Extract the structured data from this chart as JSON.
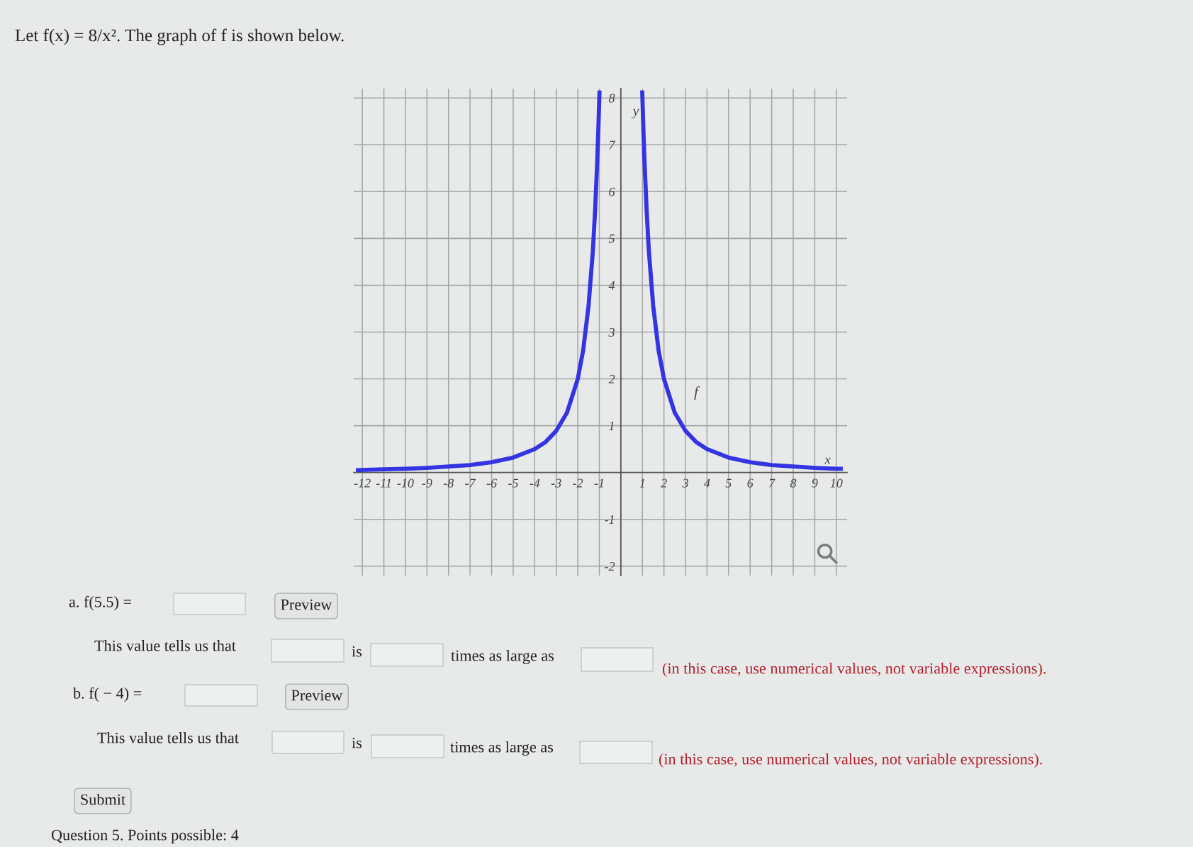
{
  "chart_data": {
    "type": "line",
    "title": "Let f(x) = 8/x². The graph of f is shown below.",
    "xlabel": "x",
    "ylabel": "y",
    "xlim": [
      -12.4,
      10.5
    ],
    "ylim": [
      -2.2,
      8.2
    ],
    "xticks": [
      {
        "value": -12,
        "label": "-12"
      },
      {
        "value": -11,
        "label": "-11"
      },
      {
        "value": -10,
        "label": "-10"
      },
      {
        "value": -9,
        "label": "-9"
      },
      {
        "value": -8,
        "label": "-8"
      },
      {
        "value": -7,
        "label": "-7"
      },
      {
        "value": -6,
        "label": "-6"
      },
      {
        "value": -5,
        "label": "-5"
      },
      {
        "value": -4,
        "label": "-4"
      },
      {
        "value": -3,
        "label": "-3"
      },
      {
        "value": -2,
        "label": "-2"
      },
      {
        "value": -1,
        "label": "-1"
      },
      1,
      2,
      3,
      4,
      5,
      6,
      7,
      8,
      9,
      10
    ],
    "yticks": [
      {
        "value": -2,
        "label": "-2"
      },
      {
        "value": -1,
        "label": "-1"
      },
      1,
      2,
      3,
      4,
      5,
      6,
      7,
      8
    ],
    "grid": true,
    "line_style": "solid",
    "marker": "none",
    "series": [
      {
        "color": "#3434e2",
        "x": [
          -12.3,
          -11,
          -10,
          -9,
          -8,
          -7,
          -6,
          -5,
          -4,
          -3.5,
          -3,
          -2.5,
          -2,
          -1.75,
          -1.5,
          -1.3,
          -1.2,
          -1.1,
          -1.05,
          -0.99,
          0,
          0.99,
          1.05,
          1.1,
          1.2,
          1.3,
          1.5,
          1.75,
          2,
          2.5,
          3,
          3.5,
          4,
          5,
          6,
          7,
          8,
          9,
          10,
          10.3
        ],
        "values": [
          0.05,
          0.07,
          0.08,
          0.1,
          0.13,
          0.16,
          0.22,
          0.32,
          0.5,
          0.65,
          0.89,
          1.28,
          2,
          2.61,
          3.56,
          4.73,
          5.56,
          6.61,
          7.26,
          8.16,
          null,
          8.16,
          7.26,
          6.61,
          5.56,
          4.73,
          3.56,
          2.61,
          2,
          1.28,
          0.89,
          0.65,
          0.5,
          0.32,
          0.22,
          0.16,
          0.13,
          0.1,
          0.08,
          0.08
        ]
      }
    ],
    "annotations": [
      "f",
      "a. f(5.5) =",
      "Preview",
      "This value tells us that",
      "is",
      "times as large as",
      "(in this case, use numerical values, not variable expressions).",
      "b. f( − 4) =",
      "Preview",
      "This value tells us that",
      "is",
      "times as large as",
      "(in this case, use numerical values, not variable expressions).",
      "Submit",
      "Question 5. Points possible: 4"
    ]
  }
}
